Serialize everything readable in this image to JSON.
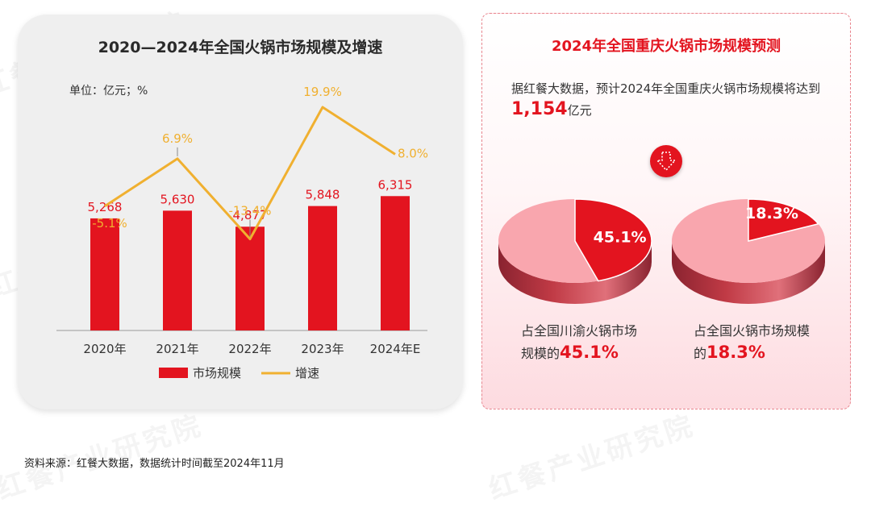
{
  "left_panel": {
    "title": "2020—2024年全国火锅市场规模及增速",
    "unit": "单位：亿元；%"
  },
  "chart_data": {
    "type": "bar+line",
    "title": "2020—2024年全国火锅市场规模及增速",
    "unit": "单位：亿元；%",
    "categories": [
      "2020年",
      "2021年",
      "2022年",
      "2023年",
      "2024年E"
    ],
    "series": [
      {
        "name": "市场规模",
        "type": "bar",
        "color": "#e3141f",
        "values": [
          5268,
          5630,
          4877,
          5848,
          6315
        ],
        "labels": [
          "5,268",
          "5,630",
          "4,877",
          "5,848",
          "6,315"
        ]
      },
      {
        "name": "增速",
        "type": "line",
        "color": "#f0b030",
        "values": [
          -5.1,
          6.9,
          -13.4,
          19.9,
          8.0
        ],
        "labels": [
          "-5.1%",
          "6.9%",
          "-13.4%",
          "19.9%",
          "8.0%"
        ]
      }
    ],
    "legend": [
      "市场规模",
      "增速"
    ]
  },
  "right_panel": {
    "title": "2024年全国重庆火锅市场规模预测",
    "text_prefix": "据红餐大数据，预计2024年全国重庆火锅市场规模将达到",
    "value": "1,154",
    "value_unit": "亿元",
    "pies": [
      {
        "share": 45.1,
        "label": "45.1%",
        "caption_line1": "占全国川渝火锅市场",
        "caption_line2_prefix": "规模的",
        "caption_highlight": "45.1%"
      },
      {
        "share": 18.3,
        "label": "18.3%",
        "caption_line1": "占全国火锅市场规模",
        "caption_line2_prefix": "的",
        "caption_highlight": "18.3%"
      }
    ]
  },
  "watermark_text": "红餐产业研究院",
  "source_note": "资料来源：红餐大数据，数据统计时间截至2024年11月",
  "colors": {
    "red": "#e3141f",
    "gold": "#f0b030",
    "pie_light": "#f9a6ae",
    "pie_side": "#c03a45"
  }
}
